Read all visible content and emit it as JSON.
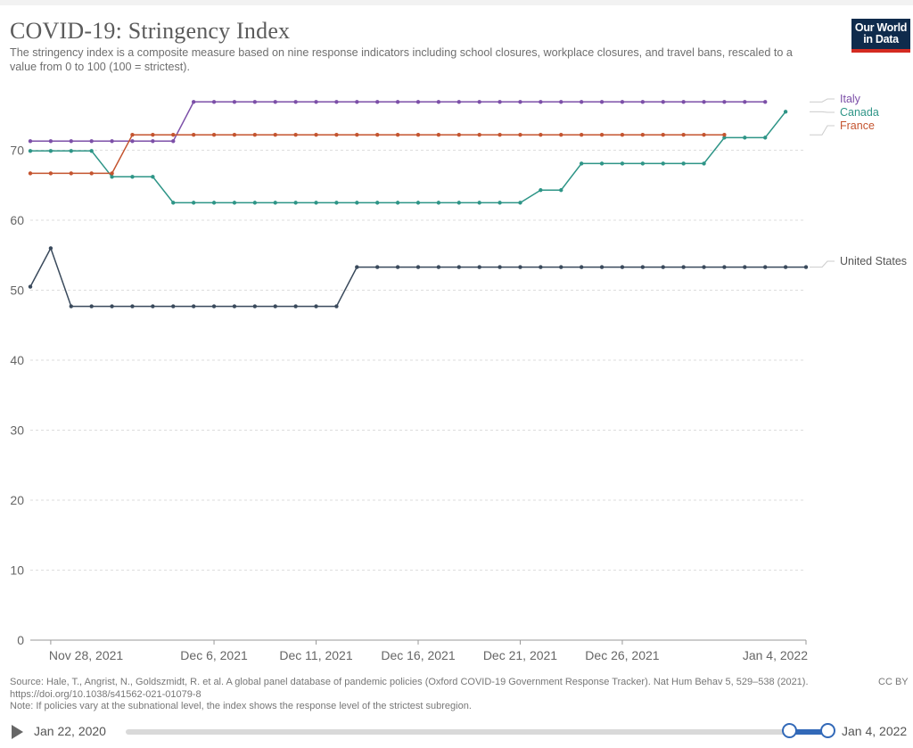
{
  "header": {
    "title": "COVID-19: Stringency Index",
    "subtitle": "The stringency index is a composite measure based on nine response indicators including school closures, workplace closures, and travel bans, rescaled to a value from 0 to 100 (100 = strictest).",
    "logo_line1": "Our World",
    "logo_line2": "in Data"
  },
  "footer": {
    "source": "Source: Hale, T., Angrist, N., Goldszmidt, R. et al. A global panel database of pandemic policies (Oxford COVID-19 Government Response Tracker). Nat Hum Behav 5, 529–538 (2021). https://doi.org/10.1038/s41562-021-01079-8",
    "note": "Note: If policies vary at the subnational level, the index shows the response level of the strictest subregion.",
    "license": "CC BY"
  },
  "timeline": {
    "start_label": "Jan 22, 2020",
    "end_label": "Jan 4, 2022"
  },
  "chart_data": {
    "type": "line",
    "x_start": "2021-11-27",
    "x_end": "2022-01-04",
    "xticks": [
      {
        "date": "2021-11-28",
        "label": "Nov 28, 2021"
      },
      {
        "date": "2021-12-06",
        "label": "Dec 6, 2021"
      },
      {
        "date": "2021-12-11",
        "label": "Dec 11, 2021"
      },
      {
        "date": "2021-12-16",
        "label": "Dec 16, 2021"
      },
      {
        "date": "2021-12-21",
        "label": "Dec 21, 2021"
      },
      {
        "date": "2021-12-26",
        "label": "Dec 26, 2021"
      },
      {
        "date": "2022-01-04",
        "label": "Jan 4, 2022"
      }
    ],
    "ylim": [
      0,
      80
    ],
    "yticks": [
      0,
      10,
      20,
      30,
      40,
      50,
      60,
      70
    ],
    "grid": true,
    "legend": "right",
    "series": [
      {
        "name": "Italy",
        "color": "#7c4fa8",
        "points": [
          {
            "x": "2021-11-27",
            "y": 71.3
          },
          {
            "x": "2021-12-04",
            "y": 71.3
          },
          {
            "x": "2021-12-05",
            "y": 76.9
          },
          {
            "x": "2022-01-02",
            "y": 76.9
          }
        ]
      },
      {
        "name": "Canada",
        "color": "#2e9587",
        "points": [
          {
            "x": "2021-11-27",
            "y": 69.9
          },
          {
            "x": "2021-11-30",
            "y": 69.9
          },
          {
            "x": "2021-12-01",
            "y": 66.2
          },
          {
            "x": "2021-12-03",
            "y": 66.2
          },
          {
            "x": "2021-12-04",
            "y": 62.5
          },
          {
            "x": "2021-12-21",
            "y": 62.5
          },
          {
            "x": "2021-12-22",
            "y": 64.3
          },
          {
            "x": "2021-12-23",
            "y": 64.3
          },
          {
            "x": "2021-12-24",
            "y": 68.1
          },
          {
            "x": "2021-12-30",
            "y": 68.1
          },
          {
            "x": "2021-12-31",
            "y": 71.8
          },
          {
            "x": "2022-01-02",
            "y": 71.8
          },
          {
            "x": "2022-01-03",
            "y": 75.5
          }
        ]
      },
      {
        "name": "France",
        "color": "#c4542f",
        "points": [
          {
            "x": "2021-11-27",
            "y": 66.7
          },
          {
            "x": "2021-12-01",
            "y": 66.7
          },
          {
            "x": "2021-12-02",
            "y": 72.2
          },
          {
            "x": "2021-12-31",
            "y": 72.2
          }
        ]
      },
      {
        "name": "United States",
        "color": "#3a4a5c",
        "points": [
          {
            "x": "2021-11-27",
            "y": 50.5
          },
          {
            "x": "2021-11-28",
            "y": 56.0
          },
          {
            "x": "2021-11-29",
            "y": 47.7
          },
          {
            "x": "2021-12-12",
            "y": 47.7
          },
          {
            "x": "2021-12-13",
            "y": 53.3
          },
          {
            "x": "2022-01-04",
            "y": 53.3
          }
        ]
      }
    ]
  }
}
